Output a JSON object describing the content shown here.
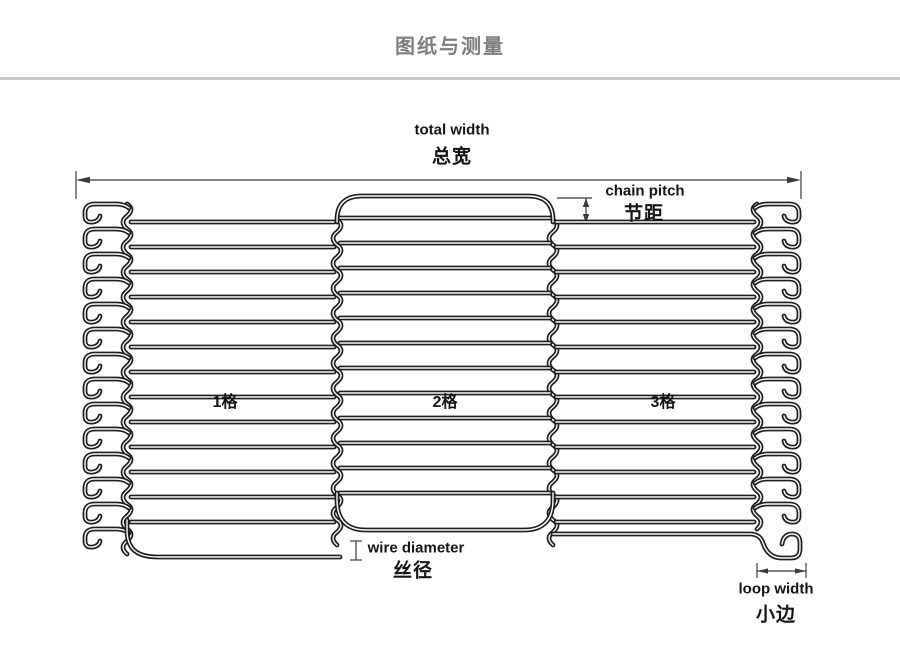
{
  "page": {
    "title": "图纸与测量"
  },
  "diagram": {
    "annotations": {
      "total_width": {
        "en": "total width",
        "zh": "总宽"
      },
      "chain_pitch": {
        "en": "chain pitch",
        "zh": "节距"
      },
      "wire_diameter": {
        "en": "wire diameter",
        "zh": "丝径"
      },
      "loop_width": {
        "en": "loop width",
        "zh": "小边"
      }
    },
    "cells": [
      "1格",
      "2格",
      "3格"
    ],
    "structure": {
      "sections": 3,
      "rows": 14,
      "left_edge_hooks": 14,
      "right_edge_hooks": 13,
      "joint_columns": 2
    },
    "colors": {
      "wire": "#1d1d1b",
      "dimension": "#3a3a3a",
      "label_text": "#141414",
      "title_text": "#7d7d7d",
      "divider": "#c7c7c7",
      "background": "#ffffff"
    }
  }
}
